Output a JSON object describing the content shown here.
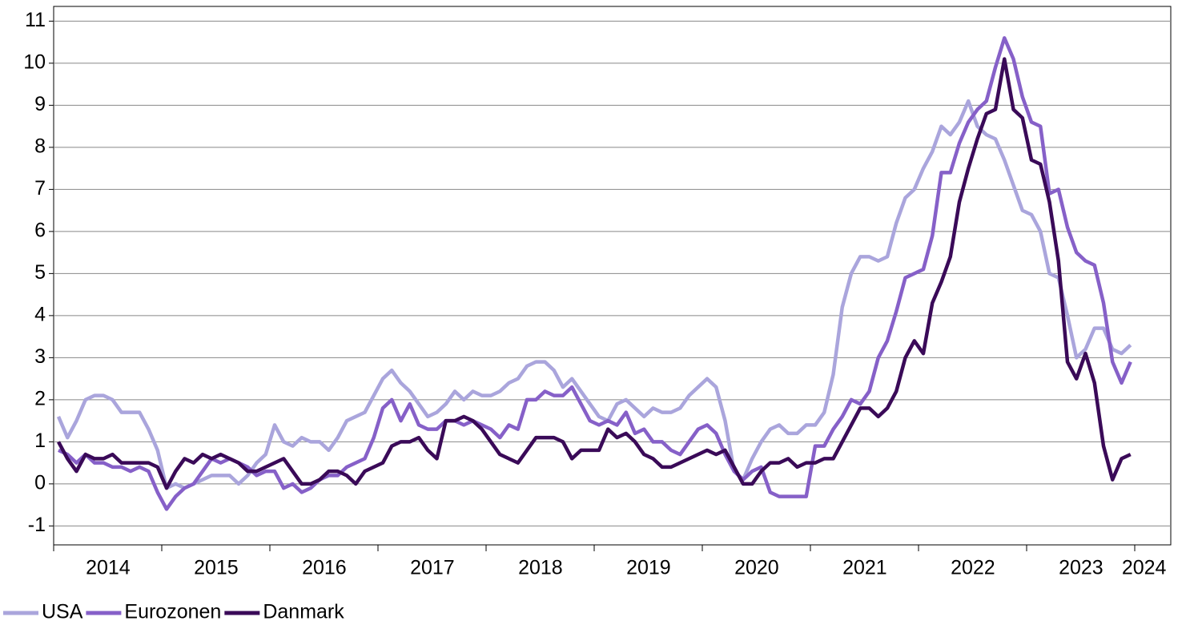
{
  "chart_data": {
    "type": "line",
    "categories": [
      null,
      null,
      null,
      null,
      null,
      null,
      "2014",
      null,
      null,
      null,
      null,
      null,
      null,
      null,
      null,
      null,
      null,
      null,
      "2015",
      null,
      null,
      null,
      null,
      null,
      null,
      null,
      null,
      null,
      null,
      null,
      "2016",
      null,
      null,
      null,
      null,
      null,
      null,
      null,
      null,
      null,
      null,
      null,
      "2017",
      null,
      null,
      null,
      null,
      null,
      null,
      null,
      null,
      null,
      null,
      null,
      "2018",
      null,
      null,
      null,
      null,
      null,
      null,
      null,
      null,
      null,
      null,
      null,
      "2019",
      null,
      null,
      null,
      null,
      null,
      null,
      null,
      null,
      null,
      null,
      null,
      "2020",
      null,
      null,
      null,
      null,
      null,
      null,
      null,
      null,
      null,
      null,
      null,
      "2021",
      null,
      null,
      null,
      null,
      null,
      null,
      null,
      null,
      null,
      null,
      null,
      "2022",
      null,
      null,
      null,
      null,
      null,
      null,
      null,
      null,
      null,
      null,
      null,
      "2023",
      null,
      null,
      null,
      null,
      null,
      null,
      "2024"
    ],
    "series": [
      {
        "name": "USA",
        "color": "#aaa5dc",
        "values": [
          1.6,
          1.1,
          1.5,
          2.0,
          2.1,
          2.1,
          2.0,
          1.7,
          1.7,
          1.7,
          1.3,
          0.8,
          -0.1,
          0.0,
          -0.1,
          0.0,
          0.1,
          0.2,
          0.2,
          0.2,
          0.0,
          0.2,
          0.5,
          0.7,
          1.4,
          1.0,
          0.9,
          1.1,
          1.0,
          1.0,
          0.8,
          1.1,
          1.5,
          1.6,
          1.7,
          2.1,
          2.5,
          2.7,
          2.4,
          2.2,
          1.9,
          1.6,
          1.7,
          1.9,
          2.2,
          2.0,
          2.2,
          2.1,
          2.1,
          2.2,
          2.4,
          2.5,
          2.8,
          2.9,
          2.9,
          2.7,
          2.3,
          2.5,
          2.2,
          1.9,
          1.6,
          1.5,
          1.9,
          2.0,
          1.8,
          1.6,
          1.8,
          1.7,
          1.7,
          1.8,
          2.1,
          2.3,
          2.5,
          2.3,
          1.5,
          0.3,
          0.1,
          0.6,
          1.0,
          1.3,
          1.4,
          1.2,
          1.2,
          1.4,
          1.4,
          1.7,
          2.6,
          4.2,
          5.0,
          5.4,
          5.4,
          5.3,
          5.4,
          6.2,
          6.8,
          7.0,
          7.5,
          7.9,
          8.5,
          8.3,
          8.6,
          9.1,
          8.5,
          8.3,
          8.2,
          7.7,
          7.1,
          6.5,
          6.4,
          6.0,
          5.0,
          4.9,
          4.0,
          3.0,
          3.2,
          3.7,
          3.7,
          3.2,
          3.1,
          3.3,
          null,
          null
        ]
      },
      {
        "name": "Eurozonen",
        "color": "#8660c8",
        "values": [
          0.8,
          0.7,
          0.5,
          0.7,
          0.5,
          0.5,
          0.4,
          0.4,
          0.3,
          0.4,
          0.3,
          -0.2,
          -0.6,
          -0.3,
          -0.1,
          0.0,
          0.3,
          0.6,
          0.5,
          0.6,
          0.5,
          0.4,
          0.2,
          0.3,
          0.3,
          -0.1,
          0.0,
          -0.2,
          -0.1,
          0.1,
          0.2,
          0.2,
          0.4,
          0.5,
          0.6,
          1.1,
          1.8,
          2.0,
          1.5,
          1.9,
          1.4,
          1.3,
          1.3,
          1.5,
          1.5,
          1.4,
          1.5,
          1.4,
          1.3,
          1.1,
          1.4,
          1.3,
          2.0,
          2.0,
          2.2,
          2.1,
          2.1,
          2.3,
          1.9,
          1.5,
          1.4,
          1.5,
          1.4,
          1.7,
          1.2,
          1.3,
          1.0,
          1.0,
          0.8,
          0.7,
          1.0,
          1.3,
          1.4,
          1.2,
          0.7,
          0.3,
          0.1,
          0.3,
          0.4,
          -0.2,
          -0.3,
          -0.3,
          -0.3,
          -0.3,
          0.9,
          0.9,
          1.3,
          1.6,
          2.0,
          1.9,
          2.2,
          3.0,
          3.4,
          4.1,
          4.9,
          5.0,
          5.1,
          5.9,
          7.4,
          7.4,
          8.1,
          8.6,
          8.9,
          9.1,
          9.9,
          10.6,
          10.1,
          9.2,
          8.6,
          8.5,
          6.9,
          7.0,
          6.1,
          5.5,
          5.3,
          5.2,
          4.3,
          2.9,
          2.4,
          2.9,
          null,
          null
        ]
      },
      {
        "name": "Danmark",
        "color": "#3a0a58",
        "values": [
          1.0,
          0.6,
          0.3,
          0.7,
          0.6,
          0.6,
          0.7,
          0.5,
          0.5,
          0.5,
          0.5,
          0.4,
          -0.1,
          0.3,
          0.6,
          0.5,
          0.7,
          0.6,
          0.7,
          0.6,
          0.5,
          0.3,
          0.3,
          0.4,
          0.5,
          0.6,
          0.3,
          0.0,
          0.0,
          0.1,
          0.3,
          0.3,
          0.2,
          0.0,
          0.3,
          0.4,
          0.5,
          0.9,
          1.0,
          1.0,
          1.1,
          0.8,
          0.6,
          1.5,
          1.5,
          1.6,
          1.5,
          1.3,
          1.0,
          0.7,
          0.6,
          0.5,
          0.8,
          1.1,
          1.1,
          1.1,
          1.0,
          0.6,
          0.8,
          0.8,
          0.8,
          1.3,
          1.1,
          1.2,
          1.0,
          0.7,
          0.6,
          0.4,
          0.4,
          0.5,
          0.6,
          0.7,
          0.8,
          0.7,
          0.8,
          0.4,
          0.0,
          0.0,
          0.3,
          0.5,
          0.5,
          0.6,
          0.4,
          0.5,
          0.5,
          0.6,
          0.6,
          1.0,
          1.4,
          1.8,
          1.8,
          1.6,
          1.8,
          2.2,
          3.0,
          3.4,
          3.1,
          4.3,
          4.8,
          5.4,
          6.7,
          7.5,
          8.2,
          8.8,
          8.9,
          10.1,
          8.9,
          8.7,
          7.7,
          7.6,
          6.7,
          5.3,
          2.9,
          2.5,
          3.1,
          2.4,
          0.9,
          0.1,
          0.6,
          0.7,
          null,
          null
        ]
      }
    ],
    "ylim": [
      -1.45,
      11.35
    ],
    "yticks": [
      -1,
      0,
      1,
      2,
      3,
      4,
      5,
      6,
      7,
      8,
      9,
      10,
      11
    ],
    "grid": true
  }
}
